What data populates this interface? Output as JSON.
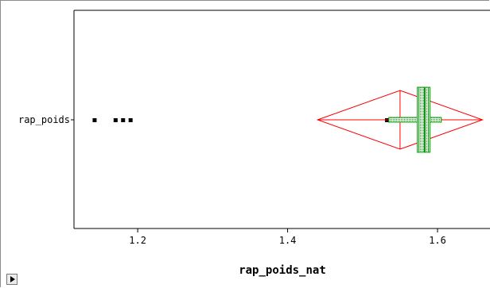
{
  "chart_data": {
    "type": "scatter",
    "subtype": "one-way box / means diamond plot",
    "title": "",
    "xlabel": "rap_poids_nat",
    "ylabel": "",
    "categories": [
      "rap_poids"
    ],
    "xlim": [
      1.115,
      1.67
    ],
    "x_ticks": [
      1.2,
      1.4,
      1.6
    ],
    "x_tick_labels": [
      "1.2",
      "1.4",
      "1.6"
    ],
    "grid": false,
    "points": [
      {
        "category": "rap_poids",
        "x": 1.142
      },
      {
        "category": "rap_poids",
        "x": 1.17
      },
      {
        "category": "rap_poids",
        "x": 1.18
      },
      {
        "category": "rap_poids",
        "x": 1.19
      },
      {
        "category": "rap_poids",
        "x": 1.532
      }
    ],
    "means_diamond": {
      "category": "rap_poids",
      "mean": 1.55,
      "lower": 1.44,
      "upper": 1.66,
      "color": "#ff0000"
    },
    "box": {
      "category": "rap_poids",
      "whisker_low": 1.535,
      "q1": 1.573,
      "median": 1.583,
      "q3": 1.59,
      "whisker_high": 1.605,
      "color": "#00a000"
    }
  }
}
